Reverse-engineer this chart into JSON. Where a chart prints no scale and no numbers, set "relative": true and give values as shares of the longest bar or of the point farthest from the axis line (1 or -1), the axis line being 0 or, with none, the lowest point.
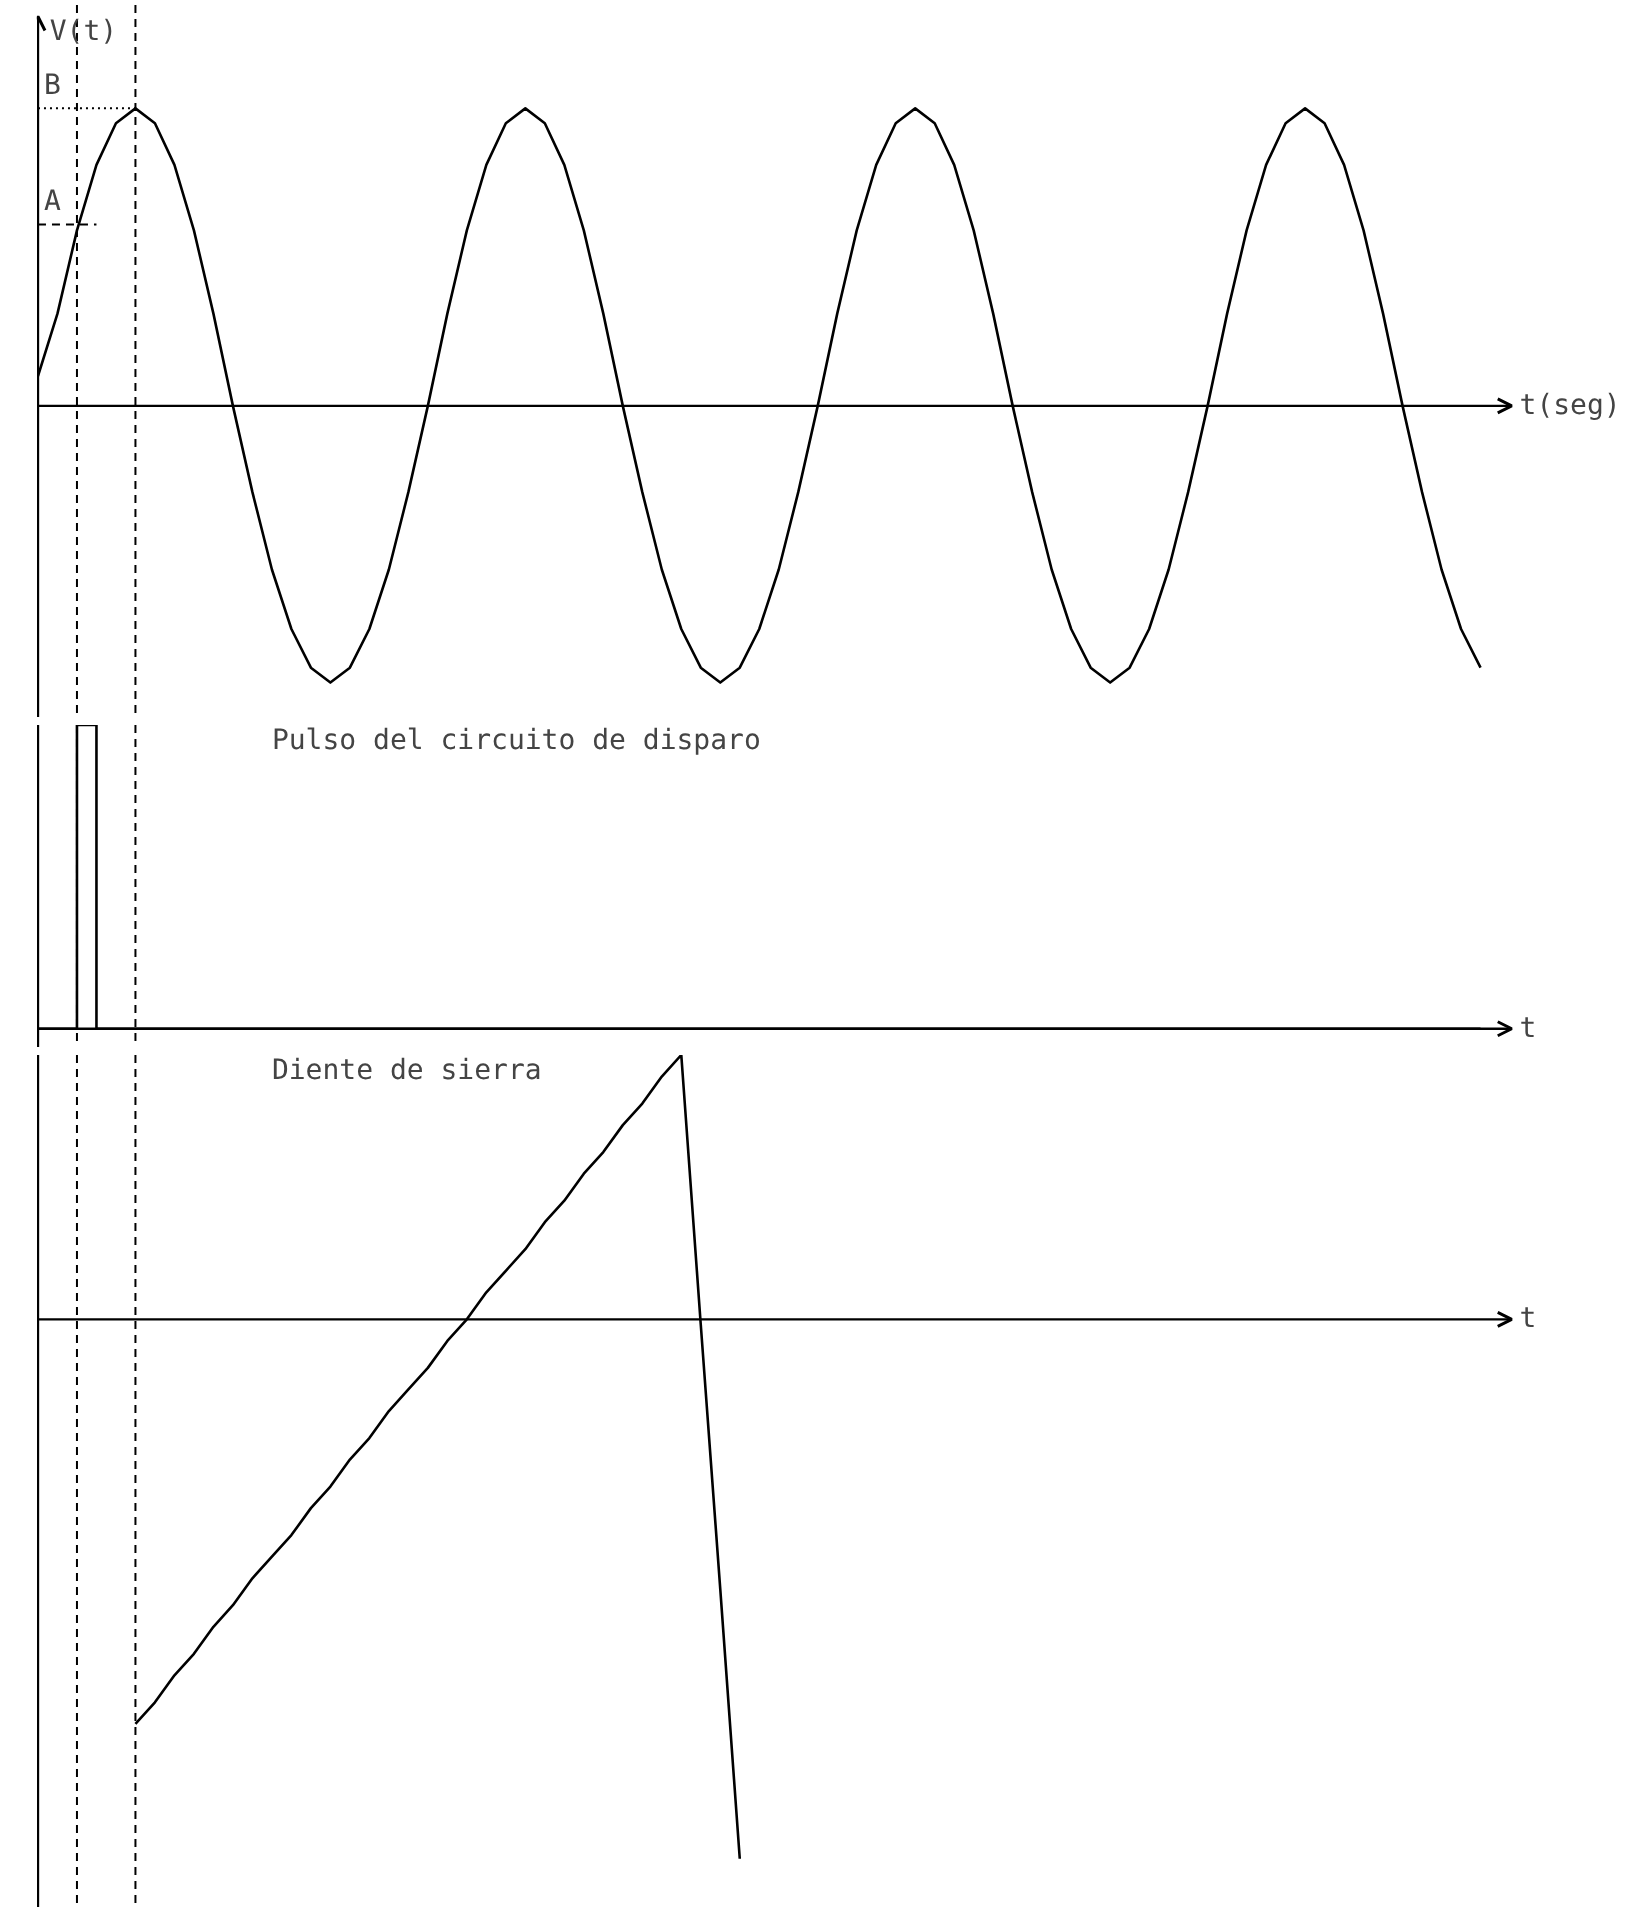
{
  "chart_data": [
    {
      "type": "line",
      "relative": true,
      "grid": false,
      "ylabel": "V(t)",
      "xlabel": "t(seg)",
      "color": "#000000",
      "categories": [
        null,
        null,
        null,
        null,
        null,
        null,
        null,
        null,
        null,
        null,
        null,
        null,
        null,
        null,
        null,
        null,
        null,
        null,
        null,
        null,
        null,
        null,
        null,
        null,
        null,
        null,
        null,
        null,
        null,
        null,
        null,
        null,
        null,
        null,
        null,
        null,
        null,
        null,
        null,
        null,
        null,
        null,
        null,
        null,
        null,
        null,
        null,
        null,
        null,
        null,
        null,
        null,
        null,
        null,
        null,
        null,
        null,
        null,
        null,
        null,
        null,
        null,
        null,
        null,
        null,
        null,
        null,
        null,
        null,
        null,
        null,
        null,
        null,
        null,
        null
      ],
      "values": [
        0.1,
        0.31,
        0.59,
        0.81,
        0.95,
        1,
        0.95,
        0.81,
        0.59,
        0.31,
        0,
        -0.29,
        -0.55,
        -0.75,
        -0.88,
        -0.93,
        -0.88,
        -0.75,
        -0.55,
        -0.29,
        0,
        0.31,
        0.59,
        0.81,
        0.95,
        1,
        0.95,
        0.81,
        0.59,
        0.31,
        0,
        -0.29,
        -0.55,
        -0.75,
        -0.88,
        -0.93,
        -0.88,
        -0.75,
        -0.55,
        -0.29,
        0,
        0.31,
        0.59,
        0.81,
        0.95,
        1,
        0.95,
        0.81,
        0.59,
        0.31,
        0,
        -0.29,
        -0.55,
        -0.75,
        -0.88,
        -0.93,
        -0.88,
        -0.75,
        -0.55,
        -0.29,
        0,
        0.31,
        0.59,
        0.81,
        0.95,
        1,
        0.95,
        0.81,
        0.59,
        0.31,
        0,
        -0.29,
        -0.55,
        -0.75,
        -0.88
      ],
      "ref_lines": [
        {
          "axis": "y",
          "value": 1,
          "label": "B",
          "line_style": "dotted"
        },
        {
          "axis": "y",
          "value": 0.61,
          "label": "A",
          "line_style": "dashed"
        }
      ]
    },
    {
      "type": "step",
      "relative": true,
      "grid": false,
      "title": "Pulso del circuito de disparo",
      "xlabel": "t",
      "color": "#000000",
      "categories": [
        null,
        null,
        null,
        null,
        null,
        null,
        null,
        null,
        null,
        null,
        null,
        null,
        null,
        null,
        null,
        null,
        null,
        null,
        null,
        null,
        null,
        null,
        null,
        null,
        null,
        null,
        null,
        null,
        null,
        null,
        null,
        null,
        null,
        null,
        null,
        null,
        null,
        null,
        null,
        null,
        null,
        null,
        null,
        null,
        null,
        null,
        null,
        null,
        null,
        null,
        null,
        null,
        null,
        null,
        null,
        null,
        null,
        null,
        null,
        null,
        null,
        null,
        null,
        null,
        null,
        null,
        null,
        null,
        null,
        null,
        null,
        null,
        null,
        null,
        null
      ],
      "values": [
        0,
        0,
        1,
        0,
        0,
        0,
        0,
        0,
        0,
        0,
        0,
        0,
        0,
        0,
        0,
        0,
        0,
        0,
        0,
        0,
        0,
        0,
        0,
        0,
        0,
        0,
        0,
        0,
        0,
        0,
        0,
        0,
        0,
        0,
        0,
        0,
        0,
        0,
        0,
        0,
        0,
        0,
        0,
        0,
        0,
        0,
        0,
        0,
        0,
        0,
        0,
        0,
        0,
        0,
        0,
        0,
        0,
        0,
        0,
        0,
        0,
        0,
        0,
        0,
        0,
        0,
        0,
        0,
        0,
        0,
        0,
        0,
        0,
        0,
        0
      ]
    },
    {
      "type": "line",
      "relative": true,
      "grid": false,
      "title": "Diente de sierra",
      "xlabel": "t",
      "color": "#000000",
      "categories": [
        null,
        null,
        null,
        null,
        null,
        null,
        null,
        null,
        null,
        null,
        null,
        null,
        null,
        null,
        null,
        null,
        null,
        null,
        null,
        null,
        null,
        null,
        null,
        null,
        null,
        null,
        null,
        null,
        null,
        null,
        null,
        null,
        null,
        null,
        null,
        null,
        null,
        null,
        null,
        null,
        null,
        null,
        null,
        null,
        null,
        null,
        null,
        null,
        null,
        null,
        null,
        null,
        null,
        null,
        null,
        null,
        null,
        null,
        null,
        null,
        null,
        null,
        null,
        null,
        null,
        null,
        null,
        null,
        null,
        null,
        null,
        null,
        null,
        null,
        null
      ],
      "values": [
        null,
        null,
        null,
        null,
        null,
        -0.75,
        -0.71,
        -0.66,
        -0.62,
        -0.57,
        -0.53,
        -0.48,
        -0.44,
        -0.4,
        -0.35,
        -0.31,
        -0.26,
        -0.22,
        -0.17,
        -0.13,
        -0.09,
        -0.04,
        0,
        0.05,
        0.09,
        0.13,
        0.18,
        0.22,
        0.27,
        0.31,
        0.36,
        0.4,
        0.45,
        0.49,
        -0.01,
        -0.5,
        -1,
        null,
        null,
        null,
        null,
        null,
        null,
        null,
        null,
        null,
        null,
        null,
        null,
        null,
        null,
        null,
        null,
        null,
        null,
        null,
        null,
        null,
        null,
        null,
        null,
        null,
        null,
        null,
        null,
        null,
        null,
        null,
        null,
        null,
        null,
        null,
        null,
        null,
        null
      ]
    }
  ]
}
